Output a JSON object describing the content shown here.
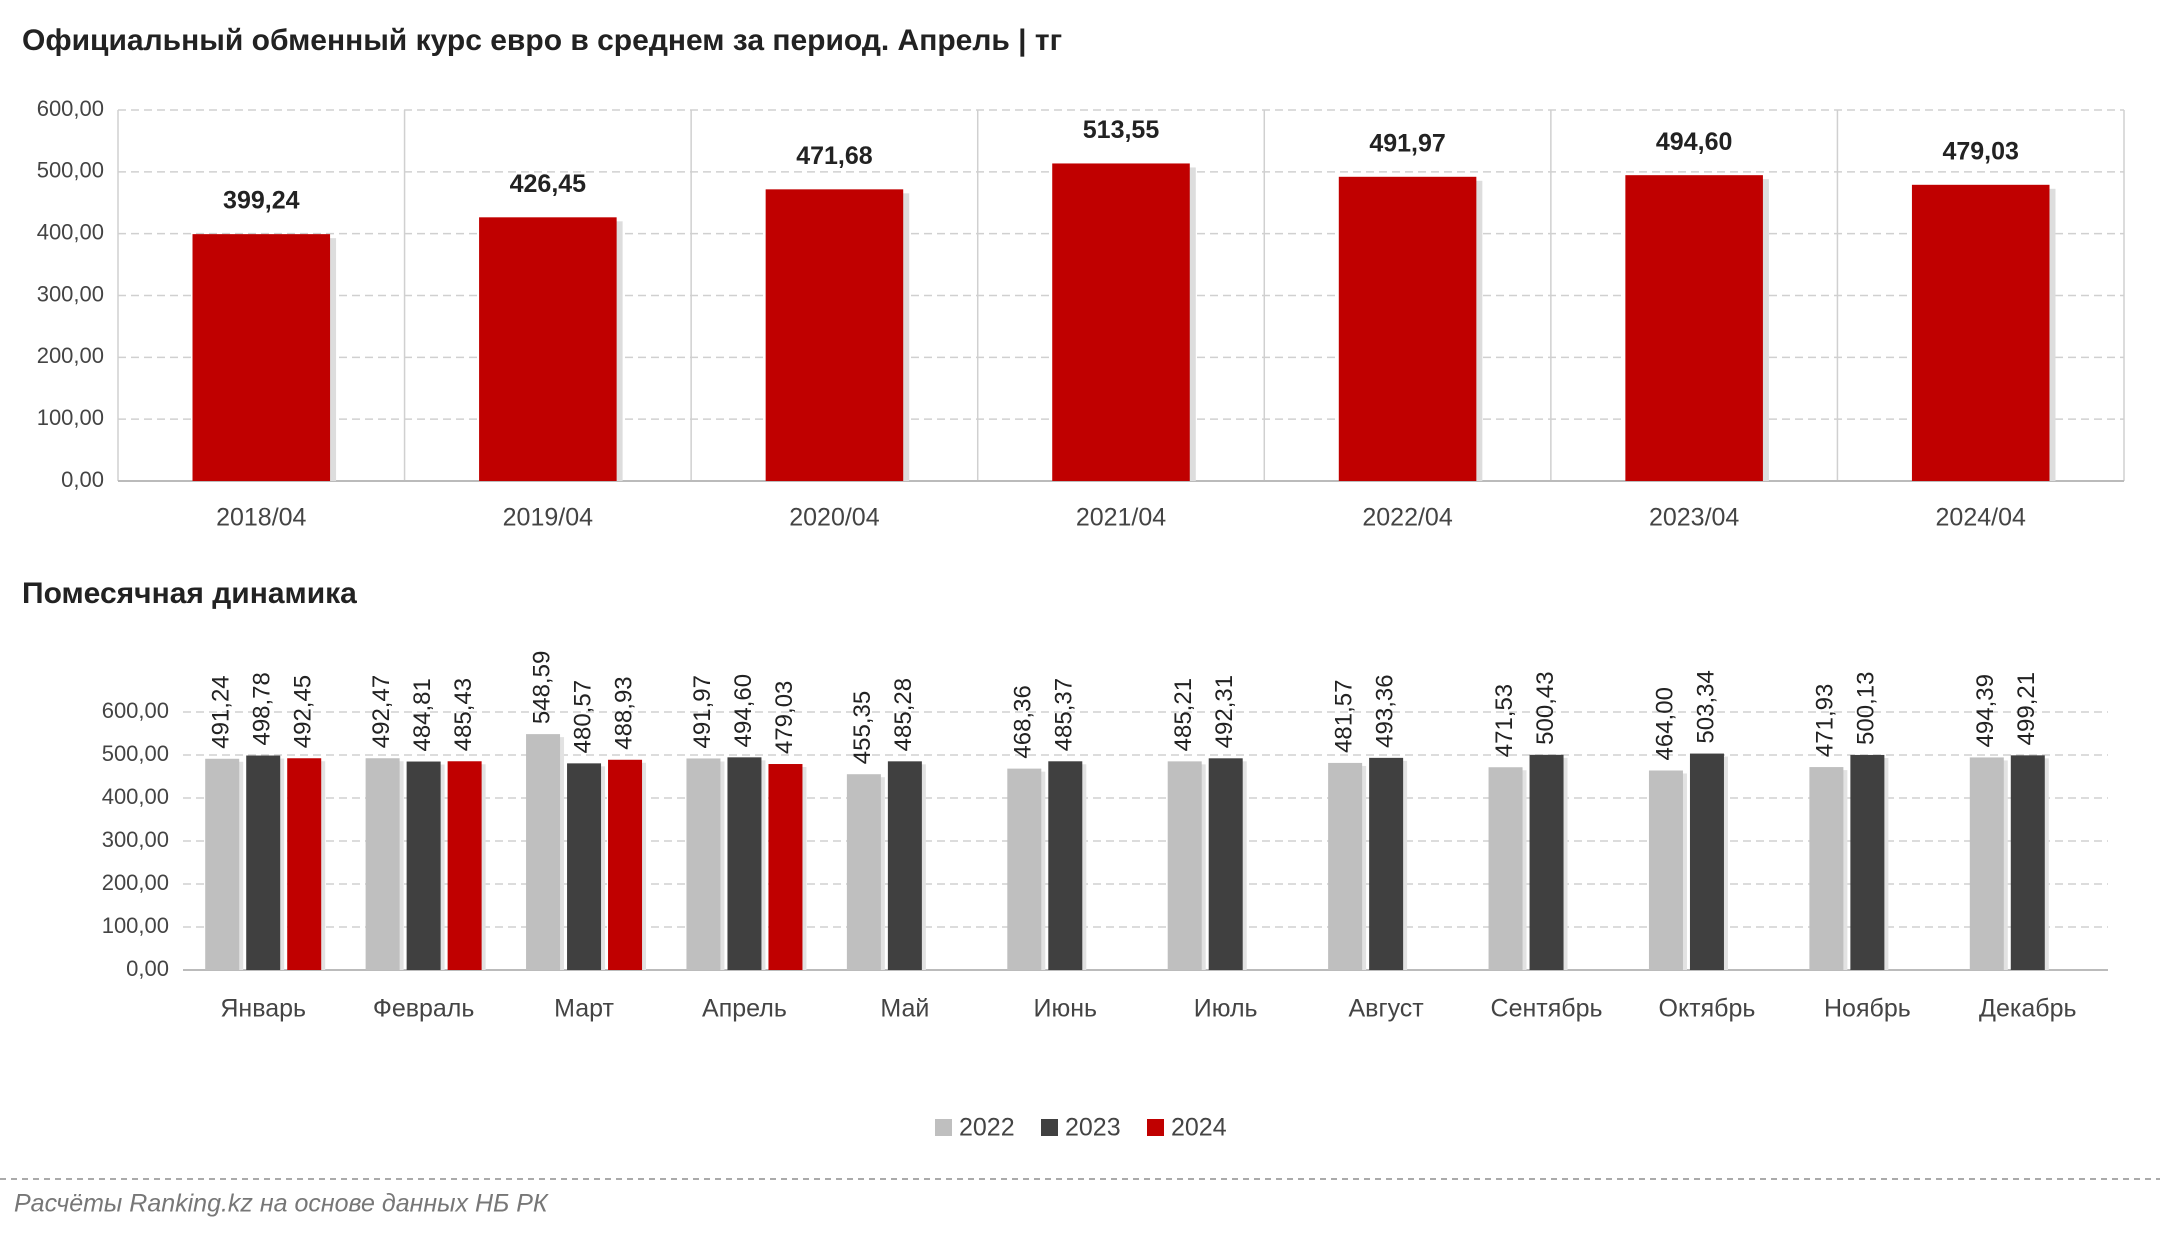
{
  "chart_data": [
    {
      "type": "bar",
      "title": "Официальный обменный курс евро в среднем за период. Апрель | тг",
      "categories": [
        "2018/04",
        "2019/04",
        "2020/04",
        "2021/04",
        "2022/04",
        "2023/04",
        "2024/04"
      ],
      "values": [
        399.24,
        426.45,
        471.68,
        513.55,
        491.97,
        494.6,
        479.03
      ],
      "value_labels": [
        "399,24",
        "426,45",
        "471,68",
        "513,55",
        "491,97",
        "494,60",
        "479,03"
      ],
      "color": "#c00000",
      "ylim": [
        0,
        600
      ],
      "yticks": [
        {
          "value": 0,
          "label": "0,00"
        },
        {
          "value": 100,
          "label": "100,00"
        },
        {
          "value": 200,
          "label": "200,00"
        },
        {
          "value": 300,
          "label": "300,00"
        },
        {
          "value": 400,
          "label": "400,00"
        },
        {
          "value": 500,
          "label": "500,00"
        },
        {
          "value": 600,
          "label": "600,00"
        }
      ],
      "grid": true
    },
    {
      "type": "grouped-bar",
      "title": "Помесячная динамика",
      "categories": [
        "Январь",
        "Февраль",
        "Март",
        "Апрель",
        "Май",
        "Июнь",
        "Июль",
        "Август",
        "Сентябрь",
        "Октябрь",
        "Ноябрь",
        "Декабрь"
      ],
      "series": [
        {
          "name": "2022",
          "color": "#bfbfbf",
          "values": [
            491.24,
            492.47,
            548.59,
            491.97,
            455.35,
            468.36,
            485.21,
            481.57,
            471.53,
            464.0,
            471.93,
            494.39
          ],
          "value_labels": [
            "491,24",
            "492,47",
            "548,59",
            "491,97",
            "455,35",
            "468,36",
            "485,21",
            "481,57",
            "471,53",
            "464,00",
            "471,93",
            "494,39"
          ]
        },
        {
          "name": "2023",
          "color": "#404040",
          "values": [
            498.78,
            484.81,
            480.57,
            494.6,
            485.28,
            485.37,
            492.31,
            493.36,
            500.43,
            503.34,
            500.13,
            499.21
          ],
          "value_labels": [
            "498,78",
            "484,81",
            "480,57",
            "494,60",
            "485,28",
            "485,37",
            "492,31",
            "493,36",
            "500,43",
            "503,34",
            "500,13",
            "499,21"
          ]
        },
        {
          "name": "2024",
          "color": "#c00000",
          "values": [
            492.45,
            485.43,
            488.93,
            479.03,
            null,
            null,
            null,
            null,
            null,
            null,
            null,
            null
          ],
          "value_labels": [
            "492,45",
            "485,43",
            "488,93",
            "479,03",
            null,
            null,
            null,
            null,
            null,
            null,
            null,
            null
          ]
        }
      ],
      "ylim": [
        0,
        600
      ],
      "yticks": [
        {
          "value": 0,
          "label": "0,00"
        },
        {
          "value": 100,
          "label": "100,00"
        },
        {
          "value": 200,
          "label": "200,00"
        },
        {
          "value": 300,
          "label": "300,00"
        },
        {
          "value": 400,
          "label": "400,00"
        },
        {
          "value": 500,
          "label": "500,00"
        },
        {
          "value": 600,
          "label": "600,00"
        }
      ],
      "grid": true
    }
  ],
  "source": "Расчёты Ranking.kz на основе данных НБ РК"
}
